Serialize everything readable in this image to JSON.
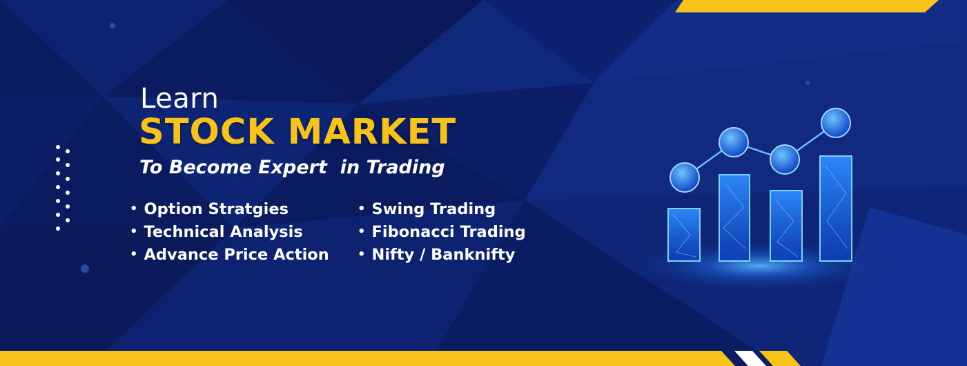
{
  "banner": {
    "learn_label": "Learn",
    "headline": "STOCK MARKET",
    "subtitle": "To Become Expert  in Trading",
    "topics_left": [
      "Option Stratgies",
      "Technical Analysis",
      "Advance Price Action"
    ],
    "topics_right": [
      "Swing Trading",
      "Fibonacci Trading",
      "Nifty / Banknifty"
    ]
  },
  "colors": {
    "background": "#0a1a5e",
    "accent": "#f7c21a",
    "text": "#ffffff",
    "glow": "#3ba4ff"
  },
  "icons": [
    "bar-chart-growth-icon",
    "dot-grid-icon"
  ]
}
